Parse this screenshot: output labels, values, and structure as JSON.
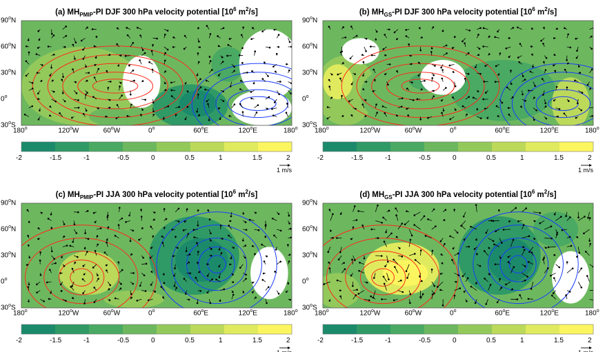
{
  "figure": {
    "panels": [
      {
        "id": "a",
        "label": "(a) MH",
        "subscript": "PMIP",
        "title_rest": "-PI DJF 300 hPa velocity potential [10",
        "exp1": "6",
        "unit_mid": " m",
        "exp2": "2",
        "unit_end": "/s]",
        "season": "DJF"
      },
      {
        "id": "b",
        "label": "(b) MH",
        "subscript": "GS",
        "title_rest": "-PI DJF 300 hPa velocity potential [10",
        "exp1": "6",
        "unit_mid": " m",
        "exp2": "2",
        "unit_end": "/s]",
        "season": "DJF"
      },
      {
        "id": "c",
        "label": "(c) MH",
        "subscript": "PMIP",
        "title_rest": "-PI JJA 300 hPa velocity potential [10",
        "exp1": "6",
        "unit_mid": " m",
        "exp2": "2",
        "unit_end": "/s]",
        "season": "JJA"
      },
      {
        "id": "d",
        "label": "(d) MH",
        "subscript": "GS",
        "title_rest": "-PI JJA 300 hPa velocity potential [10",
        "exp1": "6",
        "unit_mid": " m",
        "exp2": "2",
        "unit_end": "/s]",
        "season": "JJA"
      }
    ],
    "lat_ticks": [
      "90",
      "60",
      "30",
      "0",
      "30"
    ],
    "lat_suffix": [
      "N",
      "N",
      "N",
      "",
      "S"
    ],
    "lon_ticks": [
      "180",
      "120",
      "60",
      "0",
      "60",
      "120",
      "180"
    ],
    "lon_suffix": [
      "",
      "W",
      "W",
      "",
      "E",
      "E",
      ""
    ],
    "degree": "o",
    "colorbar": {
      "ticks": [
        "-2",
        "-1.5",
        "-1",
        "-0.5",
        "0",
        "0.5",
        "1",
        "1.5",
        "2"
      ],
      "colors": [
        "#1b8a6b",
        "#2f9a66",
        "#4aa963",
        "#6db85f",
        "#93c95b",
        "#bcd95a",
        "#e0ea5e",
        "#fbf65f"
      ]
    },
    "vector_scale_label": "1 m/s",
    "contour_colors": {
      "positive": "#ff2a1a",
      "negative": "#1a3cff"
    },
    "lon_range": [
      -180,
      180
    ],
    "lat_range": [
      -30,
      90
    ]
  }
}
